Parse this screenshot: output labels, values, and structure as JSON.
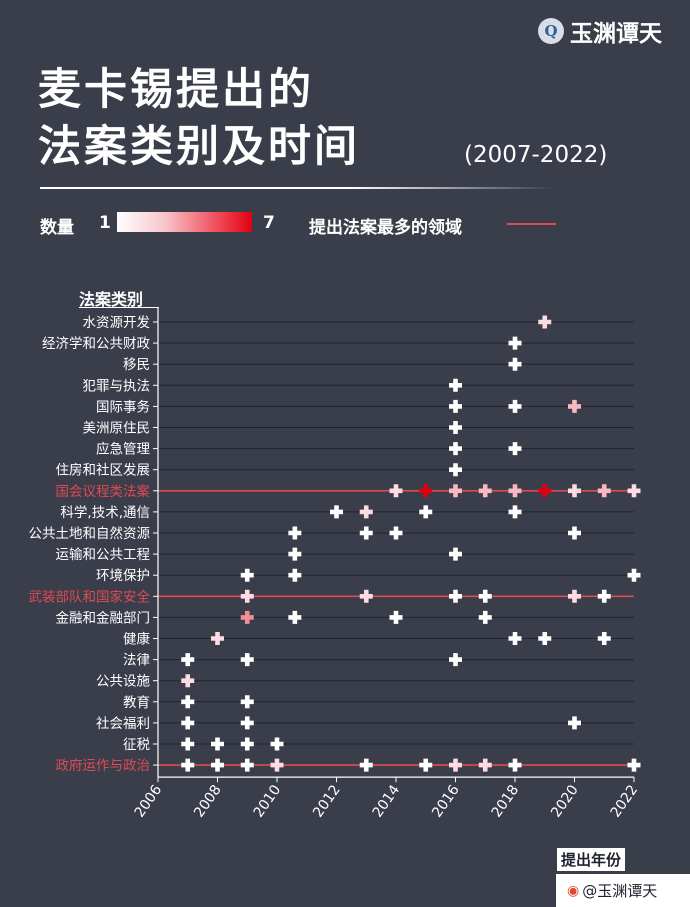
{
  "brand": {
    "logo_glyph": "Q",
    "name": "玉渊谭天"
  },
  "title": {
    "line1": "麦卡锡提出的",
    "line2": "法案类别及时间",
    "range": "(2007-2022)"
  },
  "legend": {
    "count_label": "数量",
    "min": "1",
    "max": "7",
    "line_label": "提出法案最多的领域",
    "colors": {
      "low": "#ffffff",
      "mid": "#f7aab4",
      "high": "#e00010",
      "highlight_line": "#e04a55"
    }
  },
  "footer": {
    "text": "@玉渊谭天",
    "icon": "weibo-icon"
  },
  "chart_data": {
    "type": "scatter",
    "title": "麦卡锡提出的法案类别及时间",
    "subtitle": "(2007-2022)",
    "xlabel": "提出年份",
    "ylabel": "法案类别",
    "xlim": [
      2006,
      2022
    ],
    "xticks": [
      "2006",
      "2008",
      "2010",
      "2012",
      "2014",
      "2016",
      "2018",
      "2020",
      "2022"
    ],
    "marker": "cross",
    "color_scale": {
      "min": 1,
      "max": 7,
      "label": "数量"
    },
    "highlighted_categories": [
      "国会议程类法案",
      "武装部队和国家安全",
      "政府运作与政治"
    ],
    "categories": [
      "水资源开发",
      "经济学和公共财政",
      "移民",
      "犯罪与执法",
      "国际事务",
      "美洲原住民",
      "应急管理",
      "住房和社区发展",
      "国会议程类法案",
      "科学,技术,通信",
      "公共土地和自然资源",
      "运输和公共工程",
      "环境保护",
      "武装部队和国家安全",
      "金融和金融部门",
      "健康",
      "法律",
      "公共设施",
      "教育",
      "社会福利",
      "征税",
      "政府运作与政治"
    ],
    "points": [
      {
        "category": "水资源开发",
        "year": 2019,
        "count": 2
      },
      {
        "category": "经济学和公共财政",
        "year": 2018,
        "count": 1
      },
      {
        "category": "移民",
        "year": 2018,
        "count": 1
      },
      {
        "category": "犯罪与执法",
        "year": 2016,
        "count": 1
      },
      {
        "category": "国际事务",
        "year": 2016,
        "count": 1
      },
      {
        "category": "国际事务",
        "year": 2018,
        "count": 1
      },
      {
        "category": "国际事务",
        "year": 2020,
        "count": 3
      },
      {
        "category": "美洲原住民",
        "year": 2016,
        "count": 1
      },
      {
        "category": "应急管理",
        "year": 2016,
        "count": 1
      },
      {
        "category": "应急管理",
        "year": 2018,
        "count": 1
      },
      {
        "category": "住房和社区发展",
        "year": 2016,
        "count": 1
      },
      {
        "category": "国会议程类法案",
        "year": 2014,
        "count": 2
      },
      {
        "category": "国会议程类法案",
        "year": 2015,
        "count": 7
      },
      {
        "category": "国会议程类法案",
        "year": 2016,
        "count": 3
      },
      {
        "category": "国会议程类法案",
        "year": 2017,
        "count": 3
      },
      {
        "category": "国会议程类法案",
        "year": 2018,
        "count": 3
      },
      {
        "category": "国会议程类法案",
        "year": 2019,
        "count": 7
      },
      {
        "category": "国会议程类法案",
        "year": 2020,
        "count": 2
      },
      {
        "category": "国会议程类法案",
        "year": 2021,
        "count": 3
      },
      {
        "category": "国会议程类法案",
        "year": 2022,
        "count": 2
      },
      {
        "category": "科学,技术,通信",
        "year": 2012,
        "count": 1
      },
      {
        "category": "科学,技术,通信",
        "year": 2013,
        "count": 2
      },
      {
        "category": "科学,技术,通信",
        "year": 2015,
        "count": 1
      },
      {
        "category": "科学,技术,通信",
        "year": 2018,
        "count": 1
      },
      {
        "category": "公共土地和自然资源",
        "year": 2010.6,
        "count": 1
      },
      {
        "category": "公共土地和自然资源",
        "year": 2013,
        "count": 1
      },
      {
        "category": "公共土地和自然资源",
        "year": 2014,
        "count": 1
      },
      {
        "category": "公共土地和自然资源",
        "year": 2020,
        "count": 1
      },
      {
        "category": "运输和公共工程",
        "year": 2010.6,
        "count": 1
      },
      {
        "category": "运输和公共工程",
        "year": 2016,
        "count": 1
      },
      {
        "category": "环境保护",
        "year": 2009,
        "count": 1
      },
      {
        "category": "环境保护",
        "year": 2010.6,
        "count": 1
      },
      {
        "category": "环境保护",
        "year": 2022,
        "count": 1
      },
      {
        "category": "武装部队和国家安全",
        "year": 2009,
        "count": 2
      },
      {
        "category": "武装部队和国家安全",
        "year": 2013,
        "count": 2
      },
      {
        "category": "武装部队和国家安全",
        "year": 2016,
        "count": 1
      },
      {
        "category": "武装部队和国家安全",
        "year": 2017,
        "count": 1
      },
      {
        "category": "武装部队和国家安全",
        "year": 2020,
        "count": 2
      },
      {
        "category": "武装部队和国家安全",
        "year": 2021,
        "count": 1
      },
      {
        "category": "金融和金融部门",
        "year": 2009,
        "count": 4
      },
      {
        "category": "金融和金融部门",
        "year": 2010.6,
        "count": 1
      },
      {
        "category": "金融和金融部门",
        "year": 2014,
        "count": 1
      },
      {
        "category": "金融和金融部门",
        "year": 2017,
        "count": 1
      },
      {
        "category": "健康",
        "year": 2008,
        "count": 2
      },
      {
        "category": "健康",
        "year": 2018,
        "count": 1
      },
      {
        "category": "健康",
        "year": 2019,
        "count": 1
      },
      {
        "category": "健康",
        "year": 2021,
        "count": 1
      },
      {
        "category": "法律",
        "year": 2007,
        "count": 1
      },
      {
        "category": "法律",
        "year": 2009,
        "count": 1
      },
      {
        "category": "法律",
        "year": 2016,
        "count": 1
      },
      {
        "category": "公共设施",
        "year": 2007,
        "count": 2
      },
      {
        "category": "教育",
        "year": 2007,
        "count": 1
      },
      {
        "category": "教育",
        "year": 2009,
        "count": 1
      },
      {
        "category": "社会福利",
        "year": 2007,
        "count": 1
      },
      {
        "category": "社会福利",
        "year": 2009,
        "count": 1
      },
      {
        "category": "社会福利",
        "year": 2020,
        "count": 1
      },
      {
        "category": "征税",
        "year": 2007,
        "count": 1
      },
      {
        "category": "征税",
        "year": 2008,
        "count": 1
      },
      {
        "category": "征税",
        "year": 2009,
        "count": 1
      },
      {
        "category": "征税",
        "year": 2010,
        "count": 1
      },
      {
        "category": "政府运作与政治",
        "year": 2007,
        "count": 1
      },
      {
        "category": "政府运作与政治",
        "year": 2008,
        "count": 1
      },
      {
        "category": "政府运作与政治",
        "year": 2009,
        "count": 1
      },
      {
        "category": "政府运作与政治",
        "year": 2010,
        "count": 2
      },
      {
        "category": "政府运作与政治",
        "year": 2013,
        "count": 1
      },
      {
        "category": "政府运作与政治",
        "year": 2015,
        "count": 1
      },
      {
        "category": "政府运作与政治",
        "year": 2016,
        "count": 2
      },
      {
        "category": "政府运作与政治",
        "year": 2017,
        "count": 2
      },
      {
        "category": "政府运作与政治",
        "year": 2018,
        "count": 1
      },
      {
        "category": "政府运作与政治",
        "year": 2022,
        "count": 1
      }
    ]
  }
}
